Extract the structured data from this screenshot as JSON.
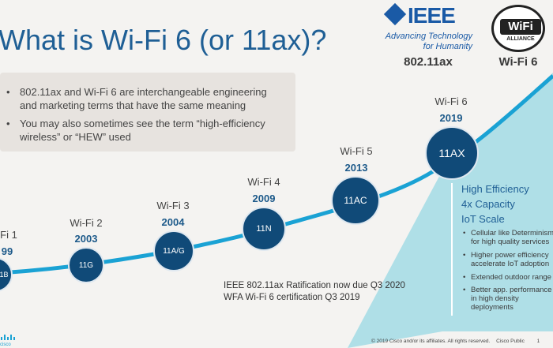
{
  "title": "What is Wi-Fi 6 (or 11ax)?",
  "bullets": [
    "802.11ax and Wi-Fi 6 are interchangeable engineering and marketing terms that have the same meaning",
    "You may also sometimes see the term “high-efficiency wireless” or “HEW” used"
  ],
  "bullet_glyph": "•",
  "logos": {
    "ieee": {
      "word": "IEEE",
      "tagline_1": "Advancing Technology",
      "tagline_2": "for Humanity",
      "caption": "802.11ax",
      "color": "#1a5aa6"
    },
    "wifi": {
      "word": "WiFi",
      "alliance": "ALLIANCE",
      "caption": "Wi-Fi 6"
    }
  },
  "generations": [
    {
      "label": "Fi 1",
      "year": "99",
      "node": "1B"
    },
    {
      "label": "Wi-Fi 2",
      "year": "2003",
      "node": "11G"
    },
    {
      "label": "Wi-Fi 3",
      "year": "2004",
      "node": "11A/G"
    },
    {
      "label": "Wi-Fi 4",
      "year": "2009",
      "node": "11N"
    },
    {
      "label": "Wi-Fi 5",
      "year": "2013",
      "node": "11AC"
    },
    {
      "label": "Wi-Fi 6",
      "year": "2019",
      "node": "11AX"
    }
  ],
  "panel": {
    "titles": [
      "High Efficiency",
      "4x Capacity",
      "IoT Scale"
    ],
    "bullets": [
      "Cellular like Determinism\nfor high quality services",
      "Higher power efficiency\naccelerate IoT adoption",
      "Extended outdoor range",
      "Better app. performance\nin high density\ndeployments"
    ],
    "color": "#a7dde6"
  },
  "ratification": {
    "line1": "IEEE 802.11ax Ratification now due Q3 2020",
    "line2": "WFA Wi-Fi 6 certification Q3 2019"
  },
  "footer": {
    "copyright": "© 2019  Cisco and/or its affiliates. All rights reserved.",
    "classification": "Cisco Public",
    "page": "1",
    "brand": "cisco"
  },
  "colors": {
    "title": "#1f5f95",
    "node": "#104a78",
    "curve": "#1aa2d4"
  }
}
